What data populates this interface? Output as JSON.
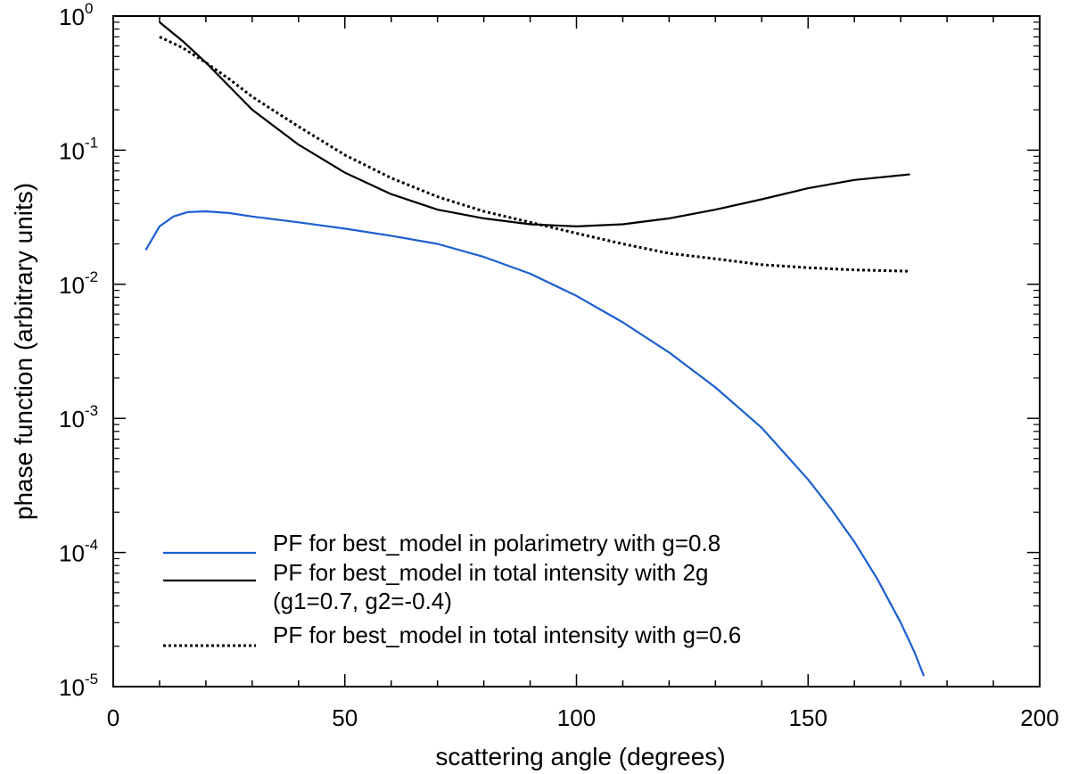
{
  "chart_data": {
    "type": "line",
    "title": "",
    "xlabel": "scattering angle (degrees)",
    "ylabel": "phase function (arbitrary units)",
    "xlim": [
      0,
      200
    ],
    "ylim": [
      1e-05,
      1
    ],
    "yscale": "log",
    "x_ticks": [
      {
        "value": 0,
        "label": "0"
      },
      {
        "value": 50,
        "label": "50"
      },
      {
        "value": 100,
        "label": "100"
      },
      {
        "value": 150,
        "label": "150"
      },
      {
        "value": 200,
        "label": "200"
      }
    ],
    "y_ticks": [
      {
        "value": 1,
        "base": "10",
        "exp": "0"
      },
      {
        "value": 0.1,
        "base": "10",
        "exp": "-1"
      },
      {
        "value": 0.01,
        "base": "10",
        "exp": "-2"
      },
      {
        "value": 0.001,
        "base": "10",
        "exp": "-3"
      },
      {
        "value": 0.0001,
        "base": "10",
        "exp": "-4"
      },
      {
        "value": 1e-05,
        "base": "10",
        "exp": "-5"
      }
    ],
    "legend_position": "bottom-left",
    "series": [
      {
        "name": "PF for best_model in polarimetry with g=0.8",
        "color": "#1a5fd0",
        "style": "solid",
        "x": [
          7,
          10,
          13,
          16,
          20,
          25,
          30,
          40,
          50,
          60,
          70,
          80,
          90,
          100,
          110,
          120,
          130,
          140,
          150,
          155,
          160,
          165,
          170,
          173,
          175
        ],
        "y": [
          0.018,
          0.027,
          0.032,
          0.0345,
          0.035,
          0.034,
          0.032,
          0.029,
          0.026,
          0.023,
          0.02,
          0.016,
          0.012,
          0.0082,
          0.0052,
          0.0031,
          0.0017,
          0.00085,
          0.00035,
          0.00021,
          0.00012,
          6.3e-05,
          3e-05,
          1.8e-05,
          1.2e-05
        ]
      },
      {
        "name": "PF for best_model in total intensity with 2g",
        "name_line2": "(g1=0.7, g2=-0.4)",
        "color": "#000000",
        "style": "solid",
        "x": [
          10,
          15,
          20,
          25,
          30,
          40,
          50,
          60,
          70,
          80,
          90,
          100,
          110,
          120,
          130,
          140,
          150,
          160,
          172
        ],
        "y": [
          0.9,
          0.65,
          0.45,
          0.3,
          0.2,
          0.11,
          0.068,
          0.047,
          0.036,
          0.031,
          0.028,
          0.027,
          0.028,
          0.031,
          0.036,
          0.043,
          0.052,
          0.06,
          0.066
        ]
      },
      {
        "name": "PF for best_model in total intensity with g=0.6",
        "color": "#000000",
        "style": "dotted",
        "x": [
          10,
          15,
          20,
          25,
          30,
          40,
          50,
          60,
          70,
          80,
          90,
          100,
          110,
          120,
          130,
          140,
          150,
          160,
          172
        ],
        "y": [
          0.7,
          0.58,
          0.45,
          0.34,
          0.25,
          0.15,
          0.092,
          0.062,
          0.045,
          0.035,
          0.029,
          0.024,
          0.02,
          0.017,
          0.0155,
          0.014,
          0.0133,
          0.0128,
          0.0125
        ]
      }
    ]
  }
}
